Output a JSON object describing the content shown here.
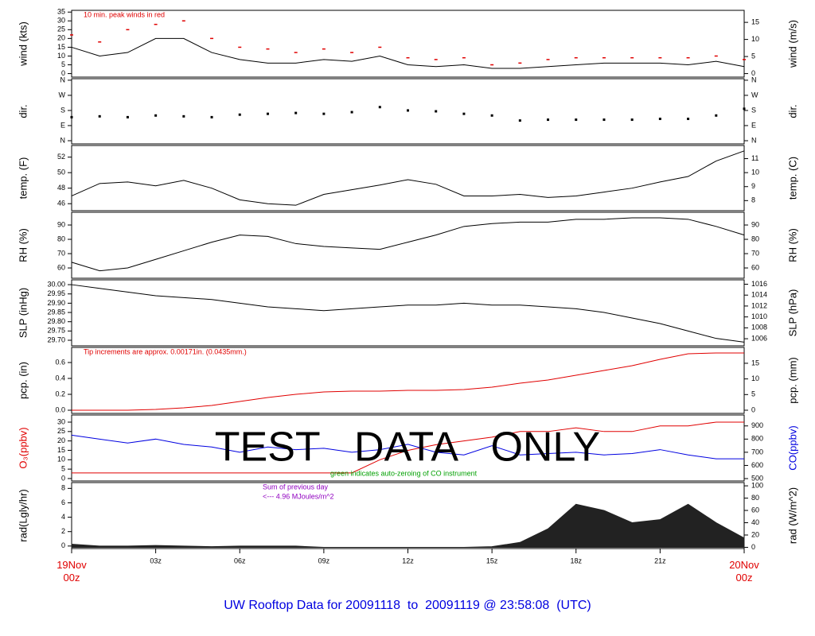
{
  "title": "UW Rooftop Data for 20091118  to  20091119 @ 23:58:08  (UTC)",
  "watermark": "TEST   DATA   ONLY",
  "xlim": [
    0,
    24
  ],
  "x": [
    0,
    1,
    2,
    3,
    4,
    5,
    6,
    7,
    8,
    9,
    10,
    11,
    12,
    13,
    14,
    15,
    16,
    17,
    18,
    19,
    20,
    21,
    22,
    23,
    24
  ],
  "xticks": [
    {
      "value": 0,
      "label": "19Nov 00z"
    },
    {
      "value": 3,
      "label": "03z"
    },
    {
      "value": 6,
      "label": "06z"
    },
    {
      "value": 9,
      "label": "09z"
    },
    {
      "value": 12,
      "label": "12z"
    },
    {
      "value": 15,
      "label": "15z"
    },
    {
      "value": 18,
      "label": "18z"
    },
    {
      "value": 21,
      "label": "21z"
    },
    {
      "value": 24,
      "label": "20Nov 00z"
    }
  ],
  "chart_data": [
    {
      "type": "line",
      "ylabel": "wind (kts)",
      "y2label": "wind (m/s)",
      "ylim": [
        -2,
        36
      ],
      "yticks": [
        0,
        5,
        10,
        15,
        20,
        25,
        30,
        35
      ],
      "y2lim": [
        -1.03,
        18.52
      ],
      "y2ticks": [
        0,
        5,
        10,
        15
      ],
      "annotations": [
        {
          "text": "10 min. peak winds in red",
          "color": "#e00000"
        }
      ],
      "series": [
        {
          "name": "wind",
          "type": "line",
          "color": "#000000",
          "values": [
            15,
            10,
            12,
            20,
            20,
            12,
            8,
            6,
            6,
            8,
            7,
            10,
            5,
            4,
            5,
            3,
            3,
            4,
            5,
            6,
            6,
            6,
            5,
            7,
            4
          ]
        },
        {
          "name": "peak",
          "type": "dash",
          "color": "#e00000",
          "values": [
            22,
            18,
            25,
            28,
            30,
            20,
            15,
            14,
            12,
            14,
            12,
            15,
            9,
            8,
            9,
            5,
            6,
            8,
            9,
            9,
            9,
            9,
            9,
            10,
            8
          ]
        }
      ]
    },
    {
      "type": "scatter",
      "ylabel": "dir.",
      "y2label": "dir.",
      "ylim": [
        -19,
        369
      ],
      "yticks": [
        {
          "value": 0,
          "label": "N"
        },
        {
          "value": 90,
          "label": "E"
        },
        {
          "value": 180,
          "label": "S"
        },
        {
          "value": 270,
          "label": "W"
        },
        {
          "value": 360,
          "label": "N"
        }
      ],
      "y2lim": [
        -19,
        369
      ],
      "y2ticks": [
        {
          "value": 0,
          "label": "N"
        },
        {
          "value": 90,
          "label": "E"
        },
        {
          "value": 180,
          "label": "S"
        },
        {
          "value": 270,
          "label": "W"
        },
        {
          "value": 360,
          "label": "N"
        }
      ],
      "series": [
        {
          "name": "direction",
          "type": "dots",
          "color": "#000000",
          "values": [
            140,
            145,
            140,
            150,
            145,
            140,
            155,
            160,
            165,
            160,
            170,
            200,
            180,
            175,
            160,
            150,
            120,
            125,
            125,
            125,
            125,
            130,
            130,
            150,
            190
          ]
        }
      ]
    },
    {
      "type": "line",
      "ylabel": "temp. (F)",
      "y2label": "temp. (C)",
      "ylim": [
        45.1,
        53.5
      ],
      "yticks": [
        46,
        48,
        50,
        52
      ],
      "y2lim": [
        7.28,
        11.94
      ],
      "y2ticks": [
        8,
        9,
        10,
        11
      ],
      "series": [
        {
          "name": "temperature",
          "type": "line",
          "color": "#000000",
          "values": [
            47,
            48.6,
            48.8,
            48.3,
            49,
            48,
            46.5,
            46,
            45.8,
            47.2,
            47.8,
            48.4,
            49.1,
            48.5,
            47,
            47,
            47.2,
            46.8,
            47,
            47.5,
            48,
            48.8,
            49.5,
            51.5,
            52.8
          ]
        }
      ]
    },
    {
      "type": "line",
      "ylabel": "RH (%)",
      "y2label": "RH (%)",
      "ylim": [
        52.8,
        98.9
      ],
      "yticks": [
        60,
        70,
        80,
        90
      ],
      "y2lim": [
        52.8,
        98.9
      ],
      "y2ticks": [
        60,
        70,
        80,
        90
      ],
      "series": [
        {
          "name": "humidity",
          "type": "line",
          "color": "#000000",
          "values": [
            64,
            58,
            60,
            66,
            72,
            78,
            83,
            82,
            77,
            75,
            74,
            73,
            78,
            83,
            89,
            91,
            92,
            92,
            94,
            94,
            95,
            95,
            94,
            89,
            83
          ]
        }
      ]
    },
    {
      "type": "line",
      "ylabel": "SLP (inHg)",
      "y2label": "SLP (hPa)",
      "ylim": [
        29.67,
        30.026
      ],
      "yticks": [
        {
          "value": 29.7,
          "label": "29.70"
        },
        {
          "value": 29.75,
          "label": "29.75"
        },
        {
          "value": 29.8,
          "label": "29.80"
        },
        {
          "value": 29.85,
          "label": "29.85"
        },
        {
          "value": 29.9,
          "label": "29.90"
        },
        {
          "value": 29.95,
          "label": "29.95"
        },
        {
          "value": 30,
          "label": "30.00"
        }
      ],
      "y2lim": [
        1004.7,
        1016.8
      ],
      "y2ticks": [
        1006,
        1008,
        1010,
        1012,
        1014,
        1016
      ],
      "series": [
        {
          "name": "pressure",
          "type": "line",
          "color": "#000000",
          "values": [
            30.0,
            29.98,
            29.96,
            29.94,
            29.93,
            29.92,
            29.9,
            29.88,
            29.87,
            29.86,
            29.87,
            29.88,
            29.89,
            29.89,
            29.9,
            29.89,
            29.89,
            29.88,
            29.87,
            29.85,
            29.82,
            29.79,
            29.75,
            29.71,
            29.69
          ]
        }
      ]
    },
    {
      "type": "line",
      "ylabel": "pcp. (in)",
      "y2label": "pcp. (mm)",
      "ylim": [
        -0.04,
        0.79
      ],
      "yticks": [
        {
          "value": 0,
          "label": "0.0"
        },
        0.2,
        0.4,
        0.6
      ],
      "y2lim": [
        -1.02,
        20.07
      ],
      "y2ticks": [
        0,
        5,
        10,
        15
      ],
      "annotations": [
        {
          "text": "Tip increments are approx. 0.00171in. (0.0435mm.)",
          "color": "#e00000"
        }
      ],
      "series": [
        {
          "name": "precipitation",
          "type": "line",
          "color": "#e00000",
          "values": [
            0,
            0,
            0,
            0.01,
            0.03,
            0.06,
            0.11,
            0.16,
            0.2,
            0.23,
            0.24,
            0.24,
            0.25,
            0.25,
            0.26,
            0.29,
            0.34,
            0.38,
            0.44,
            0.5,
            0.56,
            0.64,
            0.71,
            0.72,
            0.72
          ]
        }
      ]
    },
    {
      "type": "line",
      "ylabel": "O₃(ppbv)",
      "y2label": "CO(ppbv)",
      "ylabel_color": "#e00000",
      "y2label_color": "#0000e0",
      "ylim": [
        -1.3,
        33.8
      ],
      "yticks": [
        0,
        5,
        10,
        15,
        20,
        25,
        30
      ],
      "y2lim": [
        482,
        983
      ],
      "y2ticks": [
        500,
        600,
        700,
        800,
        900
      ],
      "annotations": [
        {
          "text": "green indicates auto-zeroing of CO instrument",
          "color": "#00a000"
        }
      ],
      "series": [
        {
          "name": "O3",
          "type": "line",
          "color": "#e00000",
          "values": [
            3,
            3,
            3,
            3,
            3,
            3,
            3,
            3,
            3,
            3,
            3,
            10,
            15,
            18,
            20,
            22,
            25,
            25,
            27,
            25,
            25,
            28,
            28,
            30,
            30
          ]
        },
        {
          "name": "CO",
          "type": "line",
          "axis": "y2",
          "color": "#0000e0",
          "values": [
            830,
            800,
            770,
            800,
            760,
            740,
            700,
            740,
            720,
            730,
            700,
            720,
            760,
            700,
            680,
            750,
            680,
            690,
            700,
            680,
            690,
            720,
            680,
            650,
            650
          ]
        }
      ]
    },
    {
      "type": "area",
      "ylabel": "rad(Lgly/hr)",
      "y2label": "rad (W/m^2)",
      "ylim": [
        -0.35,
        8.81
      ],
      "yticks": [
        0,
        2,
        4,
        6,
        8
      ],
      "y2lim": [
        -2,
        105.3
      ],
      "y2ticks": [
        0,
        20,
        40,
        60,
        80,
        100
      ],
      "annotations": [
        {
          "text": "Sum of previous day",
          "color": "#9000c0"
        },
        {
          "text": "<--- 4.96 MJoules/m^2",
          "color": "#9000c0"
        }
      ],
      "series": [
        {
          "name": "radiation",
          "type": "area",
          "axis": "y2",
          "color": "#222222",
          "values": [
            5,
            2,
            2,
            3,
            2,
            1,
            2,
            2,
            2,
            0,
            0,
            0,
            0,
            0,
            0,
            1,
            8,
            30,
            70,
            60,
            40,
            45,
            70,
            40,
            15
          ]
        }
      ]
    }
  ]
}
